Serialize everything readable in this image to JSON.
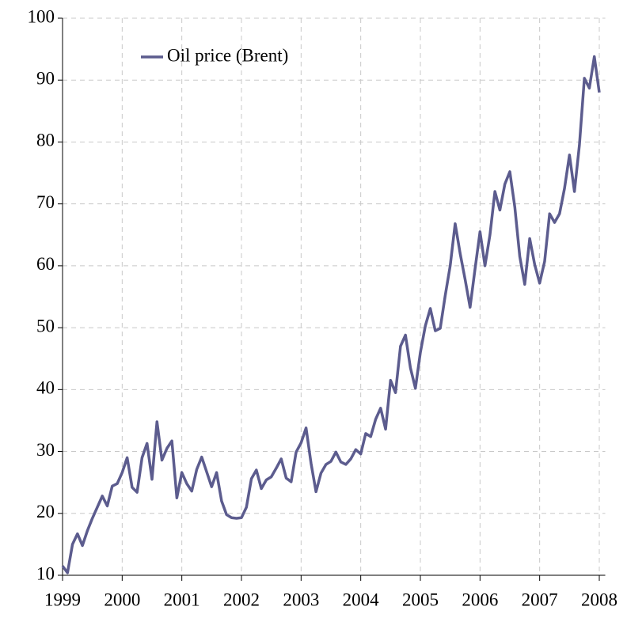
{
  "chart_data": {
    "type": "line",
    "x": [
      1999,
      1999.0833,
      1999.1667,
      1999.25,
      1999.3333,
      1999.4167,
      1999.5,
      1999.5833,
      1999.6667,
      1999.75,
      1999.8333,
      1999.9167,
      2000,
      2000.0833,
      2000.1667,
      2000.25,
      2000.3333,
      2000.4167,
      2000.5,
      2000.5833,
      2000.6667,
      2000.75,
      2000.8333,
      2000.9167,
      2001,
      2001.0833,
      2001.1667,
      2001.25,
      2001.3333,
      2001.4167,
      2001.5,
      2001.5833,
      2001.6667,
      2001.75,
      2001.8333,
      2001.9167,
      2002,
      2002.0833,
      2002.1667,
      2002.25,
      2002.3333,
      2002.4167,
      2002.5,
      2002.5833,
      2002.6667,
      2002.75,
      2002.8333,
      2002.9167,
      2003,
      2003.0833,
      2003.1667,
      2003.25,
      2003.3333,
      2003.4167,
      2003.5,
      2003.5833,
      2003.6667,
      2003.75,
      2003.8333,
      2003.9167,
      2004,
      2004.0833,
      2004.1667,
      2004.25,
      2004.3333,
      2004.4167,
      2004.5,
      2004.5833,
      2004.6667,
      2004.75,
      2004.8333,
      2004.9167,
      2005,
      2005.0833,
      2005.1667,
      2005.25,
      2005.3333,
      2005.4167,
      2005.5,
      2005.5833,
      2005.6667,
      2005.75,
      2005.8333,
      2005.9167,
      2006,
      2006.0833,
      2006.1667,
      2006.25,
      2006.3333,
      2006.4167,
      2006.5,
      2006.5833,
      2006.6667,
      2006.75,
      2006.8333,
      2006.9167,
      2007,
      2007.0833,
      2007.1667,
      2007.25,
      2007.3333,
      2007.4167,
      2007.5,
      2007.5833,
      2007.6667,
      2007.75,
      2007.8333,
      2007.9167,
      2008
    ],
    "series": [
      {
        "name": "Oil price (Brent)",
        "color": "#5c5c8e",
        "values": [
          11.5,
          10.4,
          15,
          16.7,
          14.8,
          17.2,
          19.2,
          21,
          22.8,
          21.2,
          24.4,
          24.8,
          26.6,
          29,
          24.2,
          23.4,
          29,
          31.3,
          25.5,
          34.8,
          28.6,
          30.5,
          31.7,
          22.5,
          26.6,
          24.8,
          23.6,
          27.1,
          29.1,
          26.7,
          24.3,
          26.6,
          22,
          19.8,
          19.3,
          19.2,
          19.3,
          21,
          25.6,
          27,
          24,
          25.4,
          25.9,
          27.3,
          28.8,
          25.7,
          25.1,
          29.9,
          31.4,
          33.8,
          28.1,
          23.5,
          26.5,
          27.9,
          28.4,
          29.9,
          28.3,
          27.9,
          28.8,
          30.3,
          29.6,
          32.9,
          32.4,
          35.2,
          37,
          33.6,
          41.5,
          39.5,
          47,
          48.8,
          43.5,
          40.2,
          46,
          50.3,
          53.1,
          49.5,
          49.9,
          55.2,
          60,
          66.8,
          62,
          57.8,
          53.3,
          59.5,
          65.5,
          60,
          65,
          72,
          69,
          73.2,
          75.2,
          69.5,
          61.5,
          57,
          64.4,
          60.2,
          57.2,
          60.7,
          68.4,
          67,
          68.4,
          72.5,
          77.9,
          72,
          79.5,
          90.3,
          88.7,
          93.8,
          88
        ]
      }
    ],
    "xlim": [
      1999,
      2008.1
    ],
    "xticks": [
      1999,
      2000,
      2001,
      2002,
      2003,
      2004,
      2005,
      2006,
      2007,
      2008
    ],
    "ylim": [
      10,
      100
    ],
    "yticks": [
      10,
      20,
      30,
      40,
      50,
      60,
      70,
      80,
      90,
      100
    ],
    "grid": true,
    "legend": "upper left"
  }
}
